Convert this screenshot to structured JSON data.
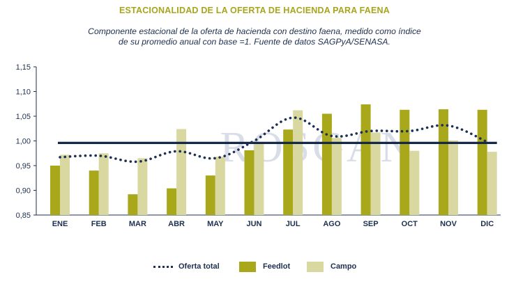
{
  "chart_data": {
    "type": "bar",
    "title": "ESTACIONALIDAD DE LA OFERTA DE HACIENDA PARA FAENA",
    "subtitle": [
      "Componente estacional de la oferta de hacienda con destino faena, medido como índice",
      "de su promedio anual con base =1. Fuente de datos SAGPyA/SENASA."
    ],
    "watermark": "ROSGAN",
    "categories": [
      "ENE",
      "FEB",
      "MAR",
      "ABR",
      "MAY",
      "JUN",
      "JUL",
      "AGO",
      "SEP",
      "OCT",
      "NOV",
      "DIC"
    ],
    "yticks": [
      "1,15",
      "1,10",
      "1,05",
      "1,00",
      "0,95",
      "0,90",
      "0,85"
    ],
    "ylim": [
      0.85,
      1.15
    ],
    "series": [
      {
        "name": "Feedlot",
        "type": "bar",
        "color": "#a9a71a",
        "values": [
          0.95,
          0.94,
          0.892,
          0.904,
          0.93,
          0.981,
          1.023,
          1.055,
          1.074,
          1.063,
          1.064,
          1.063
        ]
      },
      {
        "name": "Campo",
        "type": "bar",
        "color": "#d9d8a0",
        "values": [
          0.972,
          0.975,
          0.965,
          1.024,
          0.968,
          0.997,
          1.062,
          1.006,
          1.017,
          0.98,
          1.001,
          0.978
        ]
      },
      {
        "name": "Oferta total",
        "type": "line",
        "style": "dotted",
        "color": "#1d3155",
        "values": [
          0.967,
          0.97,
          0.958,
          0.979,
          0.965,
          1.0,
          1.047,
          1.01,
          1.02,
          1.02,
          1.031,
          0.998
        ]
      }
    ],
    "reference_line": {
      "value": 0.996,
      "color": "#14284a"
    },
    "legend": [
      "Oferta total",
      "Feedlot",
      "Campo"
    ]
  }
}
